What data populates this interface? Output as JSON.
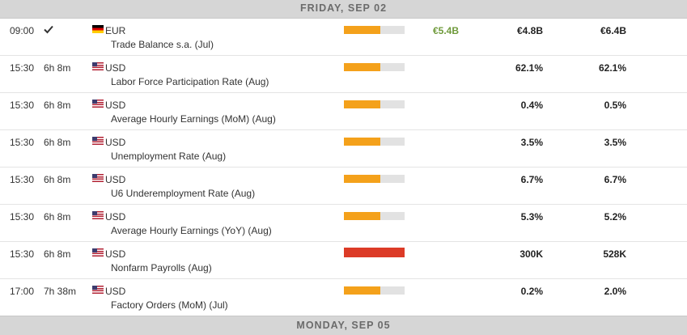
{
  "header_top": "FRIDAY, SEP 02",
  "header_bottom": "MONDAY, SEP 05",
  "colors": {
    "impact_medium": "#f4a11b",
    "impact_high": "#dc3b27",
    "impact_track": "#e2e2e2",
    "actual_positive": "#6f9a3b"
  },
  "events": [
    {
      "time": "09:00",
      "countdown": "",
      "released": true,
      "flag": "de-flag-icon",
      "currency": "EUR",
      "title": "Trade Balance s.a. (Jul)",
      "impact": "medium",
      "impact_fill": 0.6,
      "actual": "€5.4B",
      "consensus": "€4.8B",
      "previous": "€6.4B"
    },
    {
      "time": "15:30",
      "countdown": "6h 8m",
      "released": false,
      "flag": "us-flag-icon",
      "currency": "USD",
      "title": "Labor Force Participation Rate (Aug)",
      "impact": "medium",
      "impact_fill": 0.6,
      "actual": "",
      "consensus": "62.1%",
      "previous": "62.1%"
    },
    {
      "time": "15:30",
      "countdown": "6h 8m",
      "released": false,
      "flag": "us-flag-icon",
      "currency": "USD",
      "title": "Average Hourly Earnings (MoM) (Aug)",
      "impact": "medium",
      "impact_fill": 0.6,
      "actual": "",
      "consensus": "0.4%",
      "previous": "0.5%"
    },
    {
      "time": "15:30",
      "countdown": "6h 8m",
      "released": false,
      "flag": "us-flag-icon",
      "currency": "USD",
      "title": "Unemployment Rate (Aug)",
      "impact": "medium",
      "impact_fill": 0.6,
      "actual": "",
      "consensus": "3.5%",
      "previous": "3.5%"
    },
    {
      "time": "15:30",
      "countdown": "6h 8m",
      "released": false,
      "flag": "us-flag-icon",
      "currency": "USD",
      "title": "U6 Underemployment Rate (Aug)",
      "impact": "medium",
      "impact_fill": 0.6,
      "actual": "",
      "consensus": "6.7%",
      "previous": "6.7%"
    },
    {
      "time": "15:30",
      "countdown": "6h 8m",
      "released": false,
      "flag": "us-flag-icon",
      "currency": "USD",
      "title": "Average Hourly Earnings (YoY) (Aug)",
      "impact": "medium",
      "impact_fill": 0.6,
      "actual": "",
      "consensus": "5.3%",
      "previous": "5.2%"
    },
    {
      "time": "15:30",
      "countdown": "6h 8m",
      "released": false,
      "flag": "us-flag-icon",
      "currency": "USD",
      "title": "Nonfarm Payrolls (Aug)",
      "impact": "high",
      "impact_fill": 1.0,
      "actual": "",
      "consensus": "300K",
      "previous": "528K"
    },
    {
      "time": "17:00",
      "countdown": "7h 38m",
      "released": false,
      "flag": "us-flag-icon",
      "currency": "USD",
      "title": "Factory Orders (MoM) (Jul)",
      "impact": "medium",
      "impact_fill": 0.6,
      "actual": "",
      "consensus": "0.2%",
      "previous": "2.0%"
    }
  ]
}
